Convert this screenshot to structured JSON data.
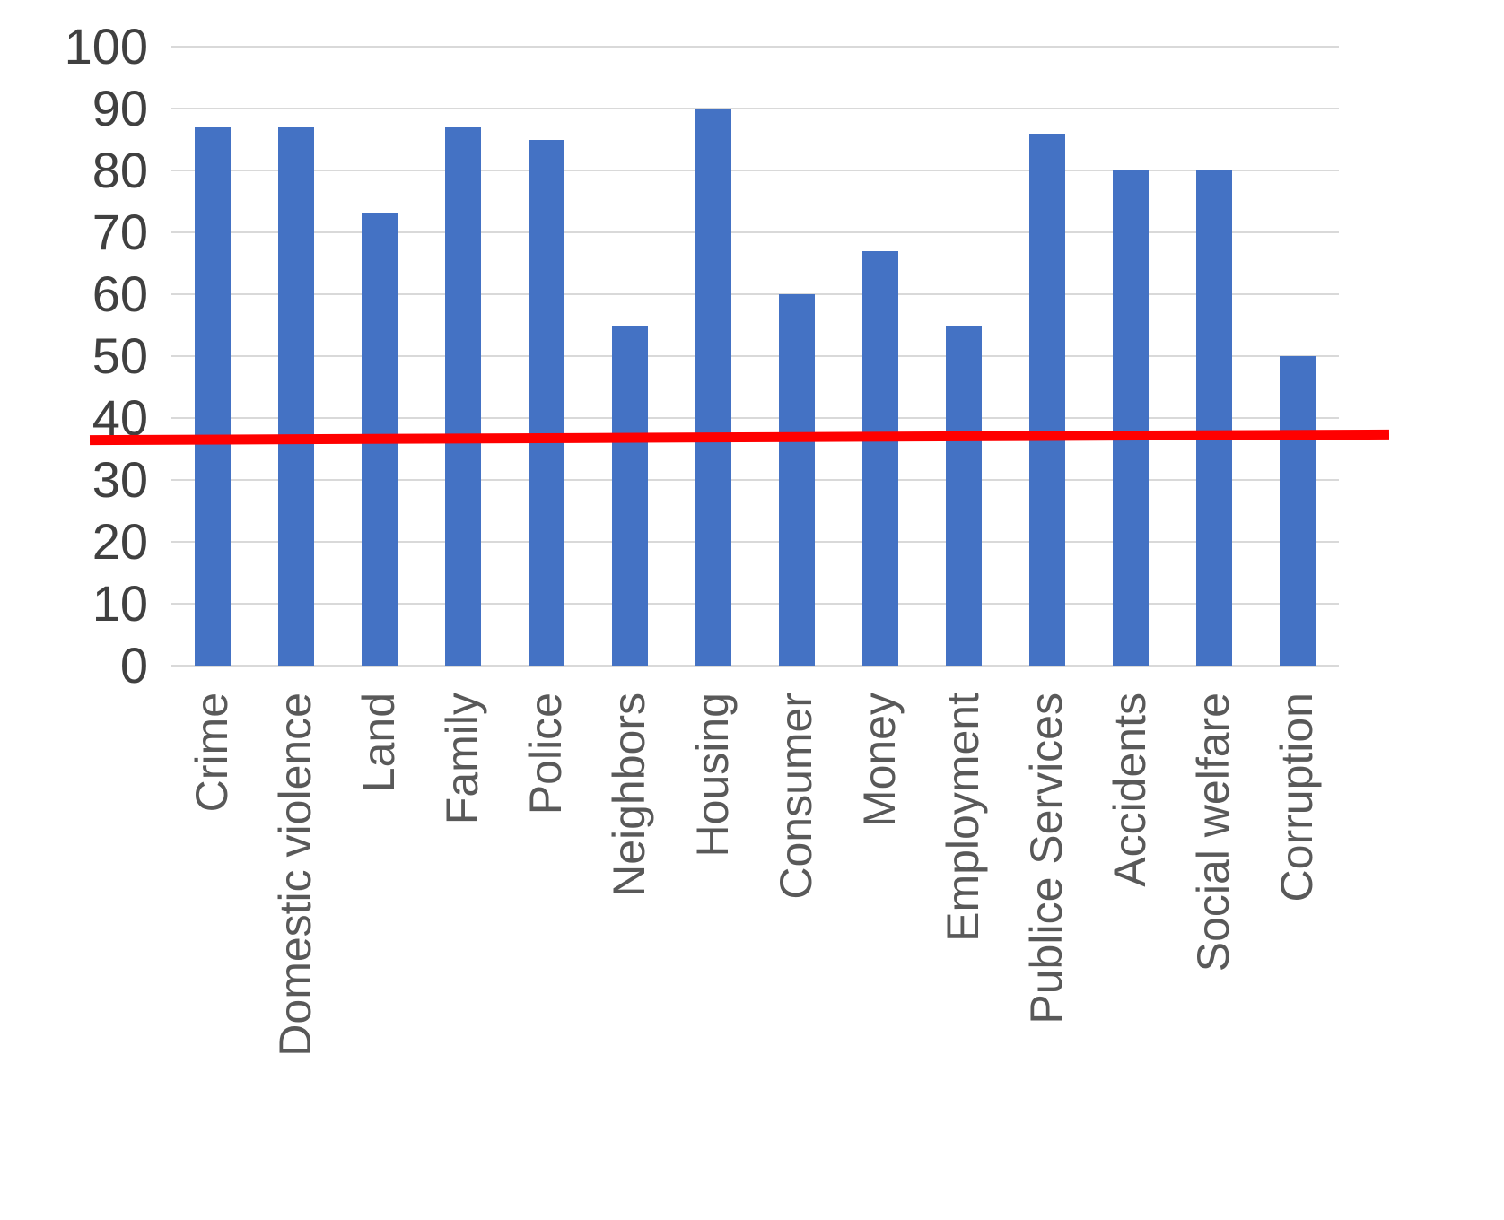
{
  "chart_data": {
    "type": "bar",
    "title": "",
    "xlabel": "",
    "ylabel": "",
    "categories": [
      "Crime",
      "Domestic violence",
      "Land",
      "Family",
      "Police",
      "Neighbors",
      "Housing",
      "Consumer",
      "Money",
      "Employment",
      "Publice Services",
      "Accidents",
      "Social welfare",
      "Corruption"
    ],
    "values": [
      87,
      87,
      73,
      87,
      85,
      55,
      90,
      60,
      67,
      55,
      86,
      80,
      80,
      50
    ],
    "ylim": [
      0,
      100
    ],
    "ytick_step": 10,
    "ytick_labels": [
      "0",
      "10",
      "20",
      "30",
      "40",
      "50",
      "60",
      "70",
      "80",
      "90",
      "100"
    ],
    "grid": true,
    "legend_position": "none",
    "bar_color": "#4472C4",
    "gridline_color": "#D9D9D9",
    "ytick_color": "#404040",
    "xlabel_color": "#595959",
    "reference_line": {
      "value": 37,
      "color": "#FF0000"
    }
  }
}
